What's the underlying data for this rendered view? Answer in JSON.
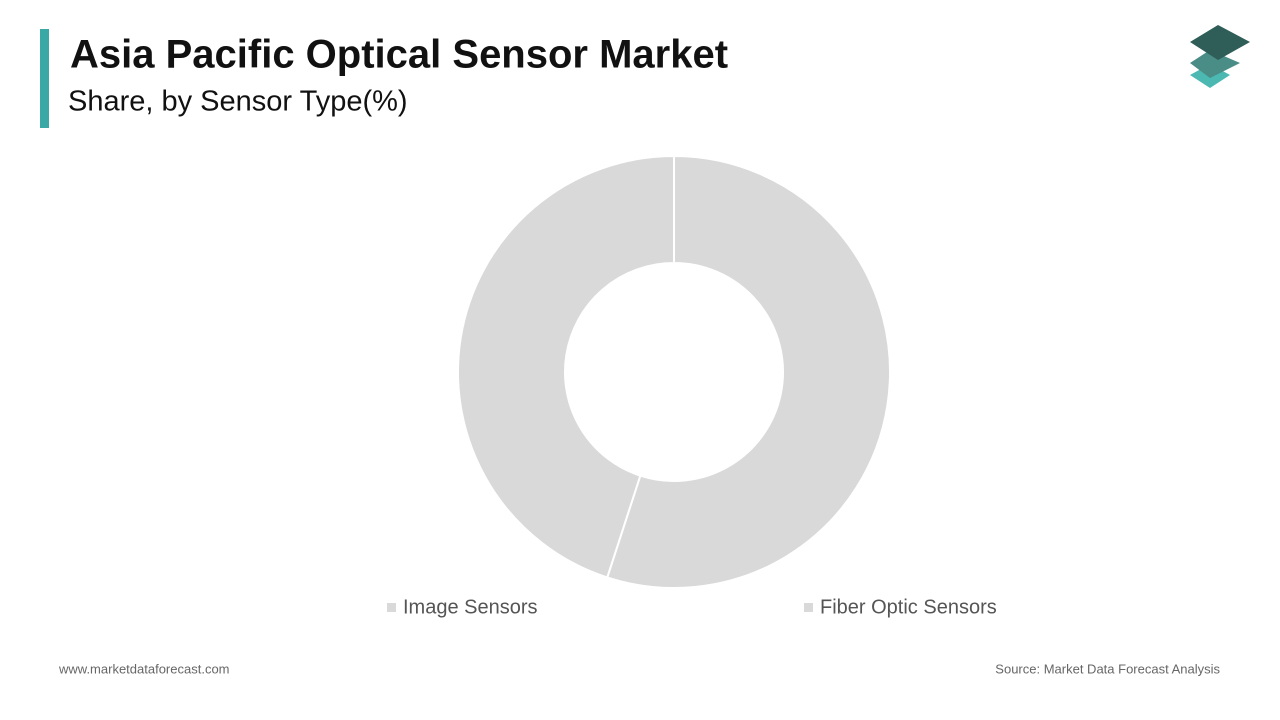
{
  "chart_data": {
    "type": "donut",
    "title": "Asia Pacific Optical Sensor Market",
    "subtitle": "Share, by Sensor Type(%)",
    "categories": [
      "Image Sensors",
      "Fiber Optic Sensors"
    ],
    "values": [
      55,
      45
    ],
    "colors": [
      "#d9d9d9",
      "#d9d9d9"
    ],
    "legend": "bottom"
  },
  "footer": {
    "website": "www.marketdataforecast.com",
    "source": "Source: Market Data Forecast Analysis"
  }
}
